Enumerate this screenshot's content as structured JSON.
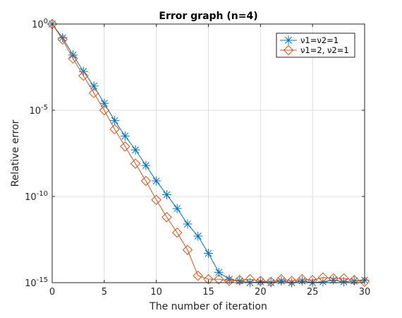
{
  "chart_data": {
    "type": "line",
    "title": "Error graph (n=4)",
    "xlabel": "The number of iteration",
    "ylabel": "Relative error",
    "x_scale": "linear",
    "y_scale": "log",
    "xlim": [
      0,
      30
    ],
    "ylim_exponent": [
      -15,
      0
    ],
    "xticks": [
      0,
      5,
      10,
      15,
      20,
      25,
      30
    ],
    "ytick_exponents": [
      -15,
      -10,
      -5,
      0
    ],
    "grid": true,
    "legend_position": "top-right",
    "series": [
      {
        "name": "ν1=ν2=1",
        "color": "#0072BD",
        "marker": "asterisk",
        "x": [
          0,
          1,
          2,
          3,
          4,
          5,
          6,
          7,
          8,
          9,
          10,
          11,
          12,
          13,
          14,
          15,
          16,
          17,
          18,
          19,
          20,
          21,
          22,
          23,
          24,
          25,
          26,
          27,
          28,
          29,
          30
        ],
        "log10_y": [
          0,
          -0.8,
          -1.8,
          -2.75,
          -3.6,
          -4.6,
          -5.6,
          -6.5,
          -7.3,
          -8.2,
          -9.1,
          -9.9,
          -10.7,
          -11.6,
          -12.3,
          -13.3,
          -14.4,
          -14.8,
          -14.9,
          -15.0,
          -14.95,
          -15.0,
          -14.9,
          -15.0,
          -14.9,
          -15.0,
          -14.95,
          -14.85,
          -14.95,
          -14.9,
          -14.85
        ],
        "y_display": "10^log10_y"
      },
      {
        "name": "ν1=2, ν2=1",
        "color": "#D95319",
        "marker": "diamond",
        "x": [
          0,
          1,
          2,
          3,
          4,
          5,
          6,
          7,
          8,
          9,
          10,
          11,
          12,
          13,
          14,
          15,
          16,
          17,
          18,
          19,
          20,
          21,
          22,
          23,
          24,
          25,
          26,
          27,
          28,
          29,
          30
        ],
        "log10_y": [
          0,
          -0.9,
          -2.0,
          -3.0,
          -4.0,
          -5.0,
          -6.1,
          -7.1,
          -8.1,
          -9.1,
          -10.2,
          -11.2,
          -12.1,
          -13.1,
          -14.6,
          -14.8,
          -14.8,
          -14.9,
          -14.85,
          -14.8,
          -14.9,
          -14.95,
          -14.8,
          -14.9,
          -14.8,
          -14.85,
          -14.7,
          -14.75,
          -14.75,
          -14.85,
          -14.95
        ],
        "y_display": "10^log10_y"
      }
    ]
  }
}
